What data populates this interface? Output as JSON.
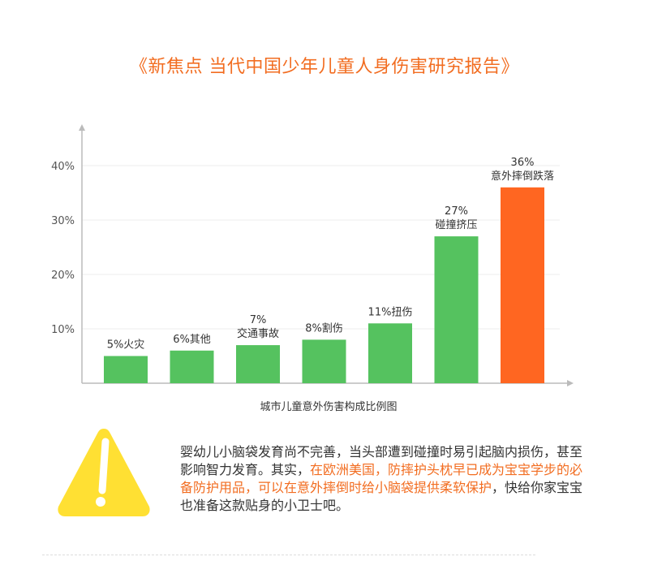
{
  "title": "《新焦点 当代中国少年儿童人身伤害研究报告》",
  "chart_data": {
    "type": "bar",
    "xlabel": "城市儿童意外伤害构成比例图",
    "ylabel": "",
    "ylim": [
      0,
      45
    ],
    "yticks": [
      10,
      20,
      30,
      40
    ],
    "ytick_labels": [
      "10%",
      "20%",
      "30%",
      "40%"
    ],
    "grid": true,
    "categories": [
      "火灾",
      "其他",
      "交通事故",
      "割伤",
      "扭伤",
      "碰撞挤压",
      "意外摔倒跌落"
    ],
    "values": [
      5,
      6,
      7,
      8,
      11,
      27,
      36
    ],
    "labels": [
      [
        "5%火灾"
      ],
      [
        "6%其他"
      ],
      [
        "7%",
        "交通事故"
      ],
      [
        "8%割伤"
      ],
      [
        "11%扭伤"
      ],
      [
        "27%",
        "碰撞挤压"
      ],
      [
        "36%",
        "意外摔倒跌落"
      ]
    ],
    "colors": [
      "#55c25f",
      "#55c25f",
      "#55c25f",
      "#55c25f",
      "#55c25f",
      "#55c25f",
      "#ff6621"
    ]
  },
  "notice": {
    "icon": "warning-icon",
    "icon_color": "#ffe033",
    "text_plain_1": "婴幼儿小脑袋发育尚不完善，当头部遭到碰撞时易引起脑内损伤，甚至影响智力发育。其实，",
    "text_highlight": "在欧洲美国，防摔护头枕早已成为宝宝学步的必备防护用品，可以在意外摔倒时给小脑袋提供柔软保护",
    "text_plain_2": "，快给你家宝宝也准备这款贴身的小卫士吧。"
  }
}
